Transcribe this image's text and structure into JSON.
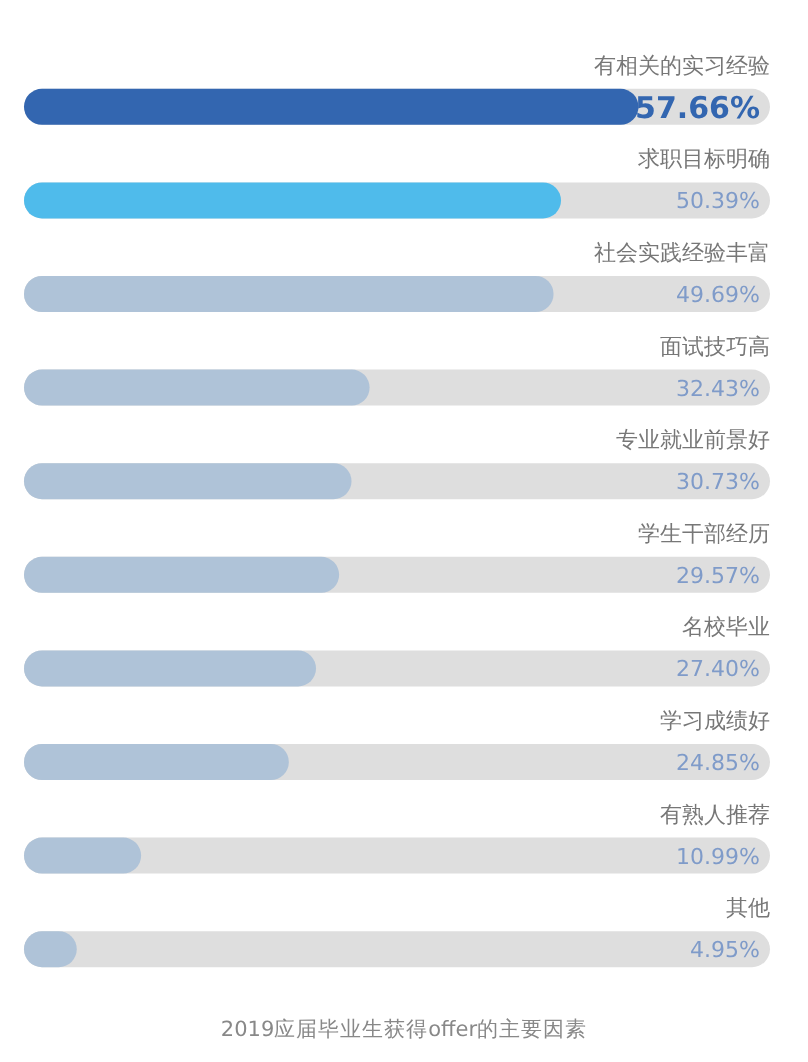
{
  "chart_data": {
    "type": "bar",
    "orientation": "horizontal",
    "title": "2019应届毕业生获得offer的主要因素",
    "categories": [
      "有相关的实习经验",
      "求职目标明确",
      "社会实践经验丰富",
      "面试技巧高",
      "专业就业前景好",
      "学生干部经历",
      "名校毕业",
      "学习成绩好",
      "有熟人推荐",
      "其他"
    ],
    "values": [
      57.66,
      50.39,
      49.69,
      32.43,
      30.73,
      29.57,
      27.4,
      24.85,
      10.99,
      4.95
    ],
    "colors": [
      "#3366b0",
      "#4fbbeb",
      "#afc3d8",
      "#afc3d8",
      "#afc3d8",
      "#afc3d8",
      "#afc3d8",
      "#afc3d8",
      "#afc3d8",
      "#afc3d8"
    ],
    "value_labels": [
      "57.66%",
      "50.39%",
      "49.69%",
      "32.43%",
      "30.73%",
      "29.57%",
      "27.40%",
      "24.85%",
      "10.99%",
      "4.95%"
    ],
    "xlim": [
      0,
      70
    ],
    "tick_labels": "y"
  }
}
